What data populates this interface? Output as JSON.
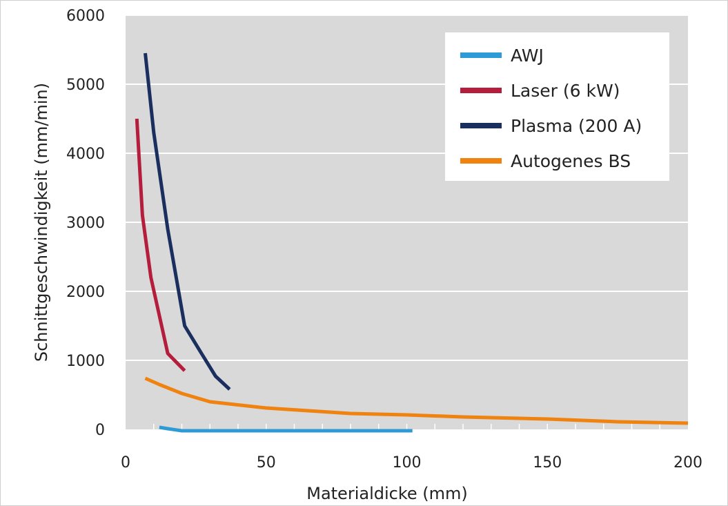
{
  "chart_data": {
    "type": "line",
    "title": "",
    "xlabel": "Materialdicke (mm)",
    "ylabel": "Schnittgeschwindigkeit (mm/min)",
    "xlim": [
      0,
      200
    ],
    "ylim": [
      0,
      6000
    ],
    "xticks": [
      0,
      50,
      100,
      150,
      200
    ],
    "yticks": [
      0,
      1000,
      2000,
      3000,
      4000,
      5000,
      6000
    ],
    "x_tick_labels": [
      "0",
      "50",
      "100",
      "150",
      "200"
    ],
    "y_tick_labels": [
      "0",
      "1000",
      "2000",
      "3000",
      "4000",
      "5000",
      "6000"
    ],
    "grid": true,
    "background": "#d9d9d9",
    "legend_position": "top-right",
    "series": [
      {
        "name": "AWJ",
        "color": "#2e9bd6",
        "points": [
          [
            12,
            30
          ],
          [
            15,
            10
          ],
          [
            20,
            -20
          ],
          [
            50,
            -20
          ],
          [
            100,
            -20
          ],
          [
            102,
            -20
          ]
        ]
      },
      {
        "name": "Laser (6 kW)",
        "color": "#b41e3c",
        "points": [
          [
            4,
            4500
          ],
          [
            6,
            3100
          ],
          [
            9,
            2200
          ],
          [
            15,
            1100
          ],
          [
            21,
            850
          ]
        ]
      },
      {
        "name": "Plasma (200 A)",
        "color": "#1a2f5e",
        "points": [
          [
            7,
            5450
          ],
          [
            10,
            4300
          ],
          [
            15,
            2900
          ],
          [
            21,
            1500
          ],
          [
            27,
            1100
          ],
          [
            32,
            770
          ],
          [
            37,
            580
          ]
        ]
      },
      {
        "name": "Autogenes BS",
        "color": "#f0820f",
        "points": [
          [
            7,
            740
          ],
          [
            12,
            650
          ],
          [
            20,
            520
          ],
          [
            30,
            400
          ],
          [
            50,
            310
          ],
          [
            80,
            230
          ],
          [
            100,
            210
          ],
          [
            120,
            180
          ],
          [
            150,
            150
          ],
          [
            175,
            110
          ],
          [
            200,
            90
          ]
        ]
      }
    ]
  }
}
